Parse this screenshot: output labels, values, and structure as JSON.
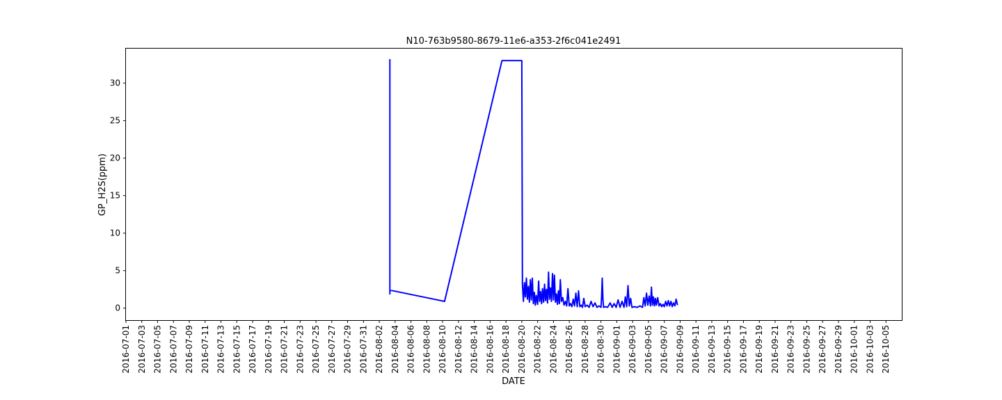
{
  "chart_data": {
    "type": "line",
    "title": "N10-763b9580-8679-11e6-a353-2f6c041e2491",
    "xlabel": "DATE",
    "ylabel": "GP_H2S(ppm)",
    "xlim": [
      "2016-07-01",
      "2016-10-07"
    ],
    "ylim": [
      -1.6,
      34.6
    ],
    "yticks": [
      0,
      5,
      10,
      15,
      20,
      25,
      30
    ],
    "xticks": [
      "2016-07-01",
      "2016-07-03",
      "2016-07-05",
      "2016-07-07",
      "2016-07-09",
      "2016-07-11",
      "2016-07-13",
      "2016-07-15",
      "2016-07-17",
      "2016-07-19",
      "2016-07-21",
      "2016-07-23",
      "2016-07-25",
      "2016-07-27",
      "2016-07-29",
      "2016-07-31",
      "2016-08-02",
      "2016-08-04",
      "2016-08-06",
      "2016-08-08",
      "2016-08-10",
      "2016-08-12",
      "2016-08-14",
      "2016-08-16",
      "2016-08-18",
      "2016-08-20",
      "2016-08-22",
      "2016-08-24",
      "2016-08-26",
      "2016-08-28",
      "2016-08-30",
      "2016-09-01",
      "2016-09-03",
      "2016-09-05",
      "2016-09-07",
      "2016-09-09",
      "2016-09-11",
      "2016-09-13",
      "2016-09-15",
      "2016-09-17",
      "2016-09-19",
      "2016-09-21",
      "2016-09-23",
      "2016-09-25",
      "2016-09-27",
      "2016-09-29",
      "2016-10-01",
      "2016-10-03",
      "2016-10-05"
    ],
    "grid": false,
    "legend": "none",
    "series": [
      {
        "color": "#0000ff",
        "points": [
          [
            "2016-08-03 08:00",
            33.2
          ],
          [
            "2016-08-03 08:10",
            1.9
          ],
          [
            "2016-08-03 08:20",
            2.4
          ],
          [
            "2016-08-10 06:00",
            0.9
          ],
          [
            "2016-08-17 12:00",
            33.0
          ],
          [
            "2016-08-20 00:00",
            33.0
          ],
          [
            "2016-08-20 02:00",
            3.2
          ],
          [
            "2016-08-20 05:00",
            0.9
          ],
          [
            "2016-08-20 08:00",
            3.4
          ],
          [
            "2016-08-20 11:00",
            1.5
          ],
          [
            "2016-08-20 14:00",
            4.0
          ],
          [
            "2016-08-20 17:00",
            1.2
          ],
          [
            "2016-08-20 20:00",
            2.9
          ],
          [
            "2016-08-20 23:00",
            0.8
          ],
          [
            "2016-08-21 02:00",
            3.8
          ],
          [
            "2016-08-21 05:00",
            1.1
          ],
          [
            "2016-08-21 08:00",
            4.0
          ],
          [
            "2016-08-21 11:00",
            0.6
          ],
          [
            "2016-08-21 14:00",
            2.1
          ],
          [
            "2016-08-21 17:00",
            0.4
          ],
          [
            "2016-08-21 20:00",
            1.7
          ],
          [
            "2016-08-22 00:00",
            0.5
          ],
          [
            "2016-08-22 03:00",
            3.6
          ],
          [
            "2016-08-22 06:00",
            0.9
          ],
          [
            "2016-08-22 09:00",
            2.2
          ],
          [
            "2016-08-22 12:00",
            0.6
          ],
          [
            "2016-08-22 15:00",
            2.6
          ],
          [
            "2016-08-22 18:00",
            0.8
          ],
          [
            "2016-08-22 21:00",
            3.2
          ],
          [
            "2016-08-23 00:00",
            1.0
          ],
          [
            "2016-08-23 03:00",
            2.5
          ],
          [
            "2016-08-23 06:00",
            0.7
          ],
          [
            "2016-08-23 09:00",
            4.8
          ],
          [
            "2016-08-23 12:00",
            1.2
          ],
          [
            "2016-08-23 15:00",
            2.7
          ],
          [
            "2016-08-23 18:00",
            0.9
          ],
          [
            "2016-08-23 21:00",
            4.6
          ],
          [
            "2016-08-24 00:00",
            1.1
          ],
          [
            "2016-08-24 03:00",
            4.4
          ],
          [
            "2016-08-24 06:00",
            0.8
          ],
          [
            "2016-08-24 09:00",
            1.9
          ],
          [
            "2016-08-24 12:00",
            0.5
          ],
          [
            "2016-08-24 15:00",
            2.3
          ],
          [
            "2016-08-24 18:00",
            0.6
          ],
          [
            "2016-08-24 21:00",
            3.8
          ],
          [
            "2016-08-25 00:00",
            0.9
          ],
          [
            "2016-08-25 04:00",
            1.4
          ],
          [
            "2016-08-25 08:00",
            0.4
          ],
          [
            "2016-08-25 12:00",
            0.9
          ],
          [
            "2016-08-25 16:00",
            0.3
          ],
          [
            "2016-08-25 20:00",
            2.6
          ],
          [
            "2016-08-26 00:00",
            0.3
          ],
          [
            "2016-08-26 04:00",
            0.6
          ],
          [
            "2016-08-26 08:00",
            0.2
          ],
          [
            "2016-08-26 12:00",
            1.2
          ],
          [
            "2016-08-26 16:00",
            0.3
          ],
          [
            "2016-08-26 20:00",
            2.0
          ],
          [
            "2016-08-27 00:00",
            0.2
          ],
          [
            "2016-08-27 04:00",
            2.3
          ],
          [
            "2016-08-27 08:00",
            0.2
          ],
          [
            "2016-08-27 12:00",
            0.4
          ],
          [
            "2016-08-27 16:00",
            0.1
          ],
          [
            "2016-08-27 20:00",
            1.3
          ],
          [
            "2016-08-28 00:00",
            0.2
          ],
          [
            "2016-08-28 06:00",
            0.4
          ],
          [
            "2016-08-28 12:00",
            0.1
          ],
          [
            "2016-08-28 18:00",
            0.9
          ],
          [
            "2016-08-29 00:00",
            0.2
          ],
          [
            "2016-08-29 06:00",
            0.7
          ],
          [
            "2016-08-29 12:00",
            0.1
          ],
          [
            "2016-08-29 18:00",
            0.3
          ],
          [
            "2016-08-30 00:00",
            0.1
          ],
          [
            "2016-08-30 02:00",
            1.5
          ],
          [
            "2016-08-30 04:00",
            4.0
          ],
          [
            "2016-08-30 06:00",
            1.2
          ],
          [
            "2016-08-30 08:00",
            0.1
          ],
          [
            "2016-08-30 14:00",
            0.2
          ],
          [
            "2016-08-30 20:00",
            0.1
          ],
          [
            "2016-08-31 04:00",
            0.7
          ],
          [
            "2016-08-31 10:00",
            0.1
          ],
          [
            "2016-08-31 16:00",
            0.6
          ],
          [
            "2016-08-31 22:00",
            0.1
          ],
          [
            "2016-09-01 04:00",
            1.1
          ],
          [
            "2016-09-01 10:00",
            0.1
          ],
          [
            "2016-09-01 16:00",
            0.9
          ],
          [
            "2016-09-01 22:00",
            0.1
          ],
          [
            "2016-09-02 02:00",
            1.5
          ],
          [
            "2016-09-02 06:00",
            0.2
          ],
          [
            "2016-09-02 10:00",
            3.0
          ],
          [
            "2016-09-02 14:00",
            0.3
          ],
          [
            "2016-09-02 18:00",
            1.3
          ],
          [
            "2016-09-02 22:00",
            0.1
          ],
          [
            "2016-09-03 06:00",
            0.2
          ],
          [
            "2016-09-03 14:00",
            0.1
          ],
          [
            "2016-09-03 22:00",
            0.3
          ],
          [
            "2016-09-04 06:00",
            0.1
          ],
          [
            "2016-09-04 10:00",
            1.4
          ],
          [
            "2016-09-04 14:00",
            0.3
          ],
          [
            "2016-09-04 18:00",
            2.0
          ],
          [
            "2016-09-04 22:00",
            0.4
          ],
          [
            "2016-09-05 02:00",
            1.6
          ],
          [
            "2016-09-05 06:00",
            0.3
          ],
          [
            "2016-09-05 09:00",
            2.8
          ],
          [
            "2016-09-05 12:00",
            0.4
          ],
          [
            "2016-09-05 15:00",
            1.5
          ],
          [
            "2016-09-05 18:00",
            0.3
          ],
          [
            "2016-09-05 21:00",
            1.3
          ],
          [
            "2016-09-06 00:00",
            0.4
          ],
          [
            "2016-09-06 04:00",
            1.4
          ],
          [
            "2016-09-06 08:00",
            0.3
          ],
          [
            "2016-09-06 12:00",
            0.6
          ],
          [
            "2016-09-06 16:00",
            0.2
          ],
          [
            "2016-09-06 20:00",
            0.5
          ],
          [
            "2016-09-07 00:00",
            0.2
          ],
          [
            "2016-09-07 04:00",
            0.9
          ],
          [
            "2016-09-07 08:00",
            0.3
          ],
          [
            "2016-09-07 12:00",
            1.0
          ],
          [
            "2016-09-07 16:00",
            0.3
          ],
          [
            "2016-09-07 20:00",
            0.9
          ],
          [
            "2016-09-08 00:00",
            0.2
          ],
          [
            "2016-09-08 04:00",
            0.7
          ],
          [
            "2016-09-08 08:00",
            0.3
          ],
          [
            "2016-09-08 12:00",
            1.2
          ],
          [
            "2016-09-08 16:00",
            0.4
          ]
        ]
      }
    ]
  }
}
